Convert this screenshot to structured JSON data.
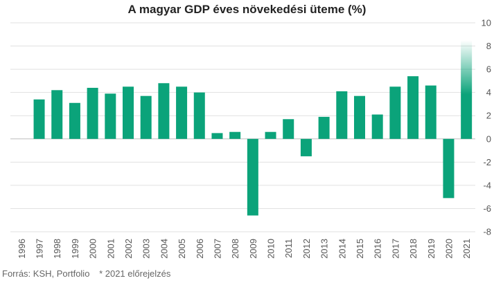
{
  "chart_data": {
    "type": "bar",
    "title": "A magyar GDP éves növekedési üteme (%)",
    "categories": [
      "1996",
      "1997",
      "1998",
      "1999",
      "2000",
      "2001",
      "2002",
      "2003",
      "2004",
      "2005",
      "2006",
      "2007",
      "2008",
      "2009",
      "2010",
      "2011",
      "2012",
      "2013",
      "2014",
      "2015",
      "2016",
      "2017",
      "2018",
      "2019",
      "2020",
      "2021"
    ],
    "values": [
      null,
      3.4,
      4.2,
      3.1,
      4.4,
      3.9,
      4.5,
      3.7,
      4.8,
      4.5,
      4.0,
      0.5,
      0.6,
      -6.6,
      0.6,
      1.7,
      -1.5,
      1.9,
      4.1,
      3.7,
      2.1,
      4.5,
      5.4,
      4.6,
      -5.1,
      8.5
    ],
    "forecast_category": "2021",
    "y_ticks": [
      "10",
      "8",
      "6",
      "4",
      "2",
      "0",
      "-2",
      "-4",
      "-6",
      "-8"
    ],
    "ylim": [
      -8,
      10
    ],
    "grid": true,
    "xlabel": "",
    "ylabel": "",
    "bar_color": "#0ba37a"
  },
  "footer": {
    "source": "Forrás: KSH, Portfolio",
    "note": "* 2021 előrejelzés"
  }
}
